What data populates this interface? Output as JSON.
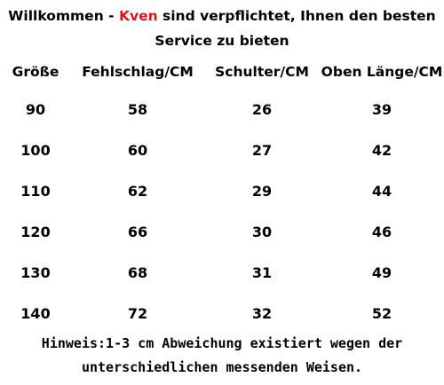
{
  "header": {
    "welcome_before": "Willkommen - ",
    "brand": "Kven",
    "welcome_after": " sind verpflichtet, Ihnen den besten",
    "line2": "Service zu bieten",
    "brand_color": "#e0141c"
  },
  "table": {
    "columns": [
      "Größe",
      "Fehlschlag/CM",
      "Schulter/CM",
      "Oben Länge/CM"
    ],
    "rows": [
      [
        "90",
        "58",
        "26",
        "39"
      ],
      [
        "100",
        "60",
        "27",
        "42"
      ],
      [
        "110",
        "62",
        "29",
        "44"
      ],
      [
        "120",
        "66",
        "30",
        "46"
      ],
      [
        "130",
        "68",
        "31",
        "49"
      ],
      [
        "140",
        "72",
        "32",
        "52"
      ]
    ]
  },
  "footer": {
    "line1": "Hinweis:1-3 cm Abweichung existiert wegen der",
    "line2": "unterschiedlichen messenden Weisen."
  }
}
